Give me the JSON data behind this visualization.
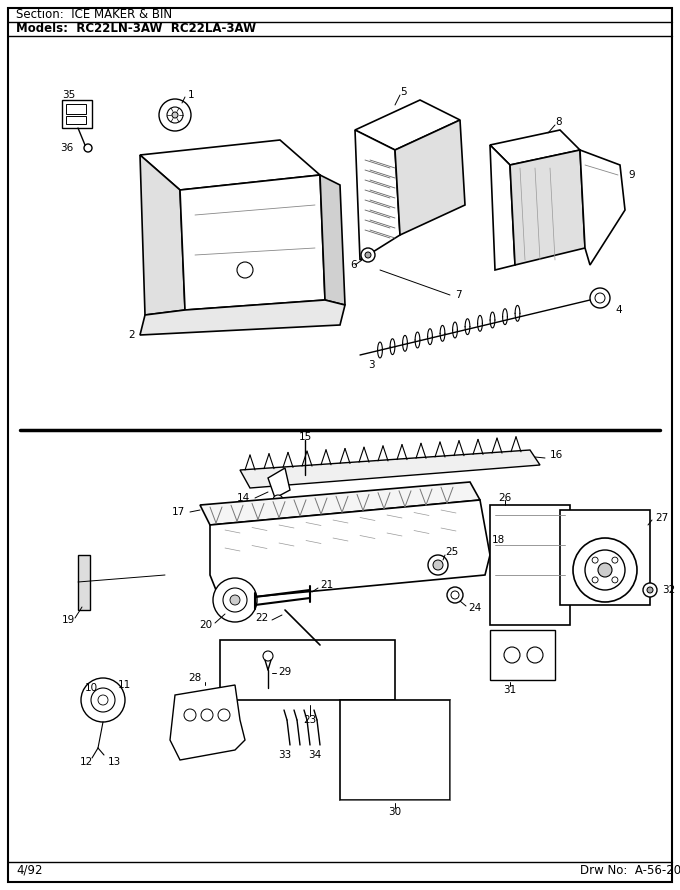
{
  "section_label": "Section:  ICE MAKER & BIN",
  "models_label": "Models:  RC22LN-3AW  RC22LA-3AW",
  "date_label": "4/92",
  "drw_label": "Drw No:  A-56-20",
  "bg_color": "#ffffff",
  "border_color": "#000000",
  "text_color": "#000000",
  "fig_width": 6.8,
  "fig_height": 8.9,
  "dpi": 100
}
